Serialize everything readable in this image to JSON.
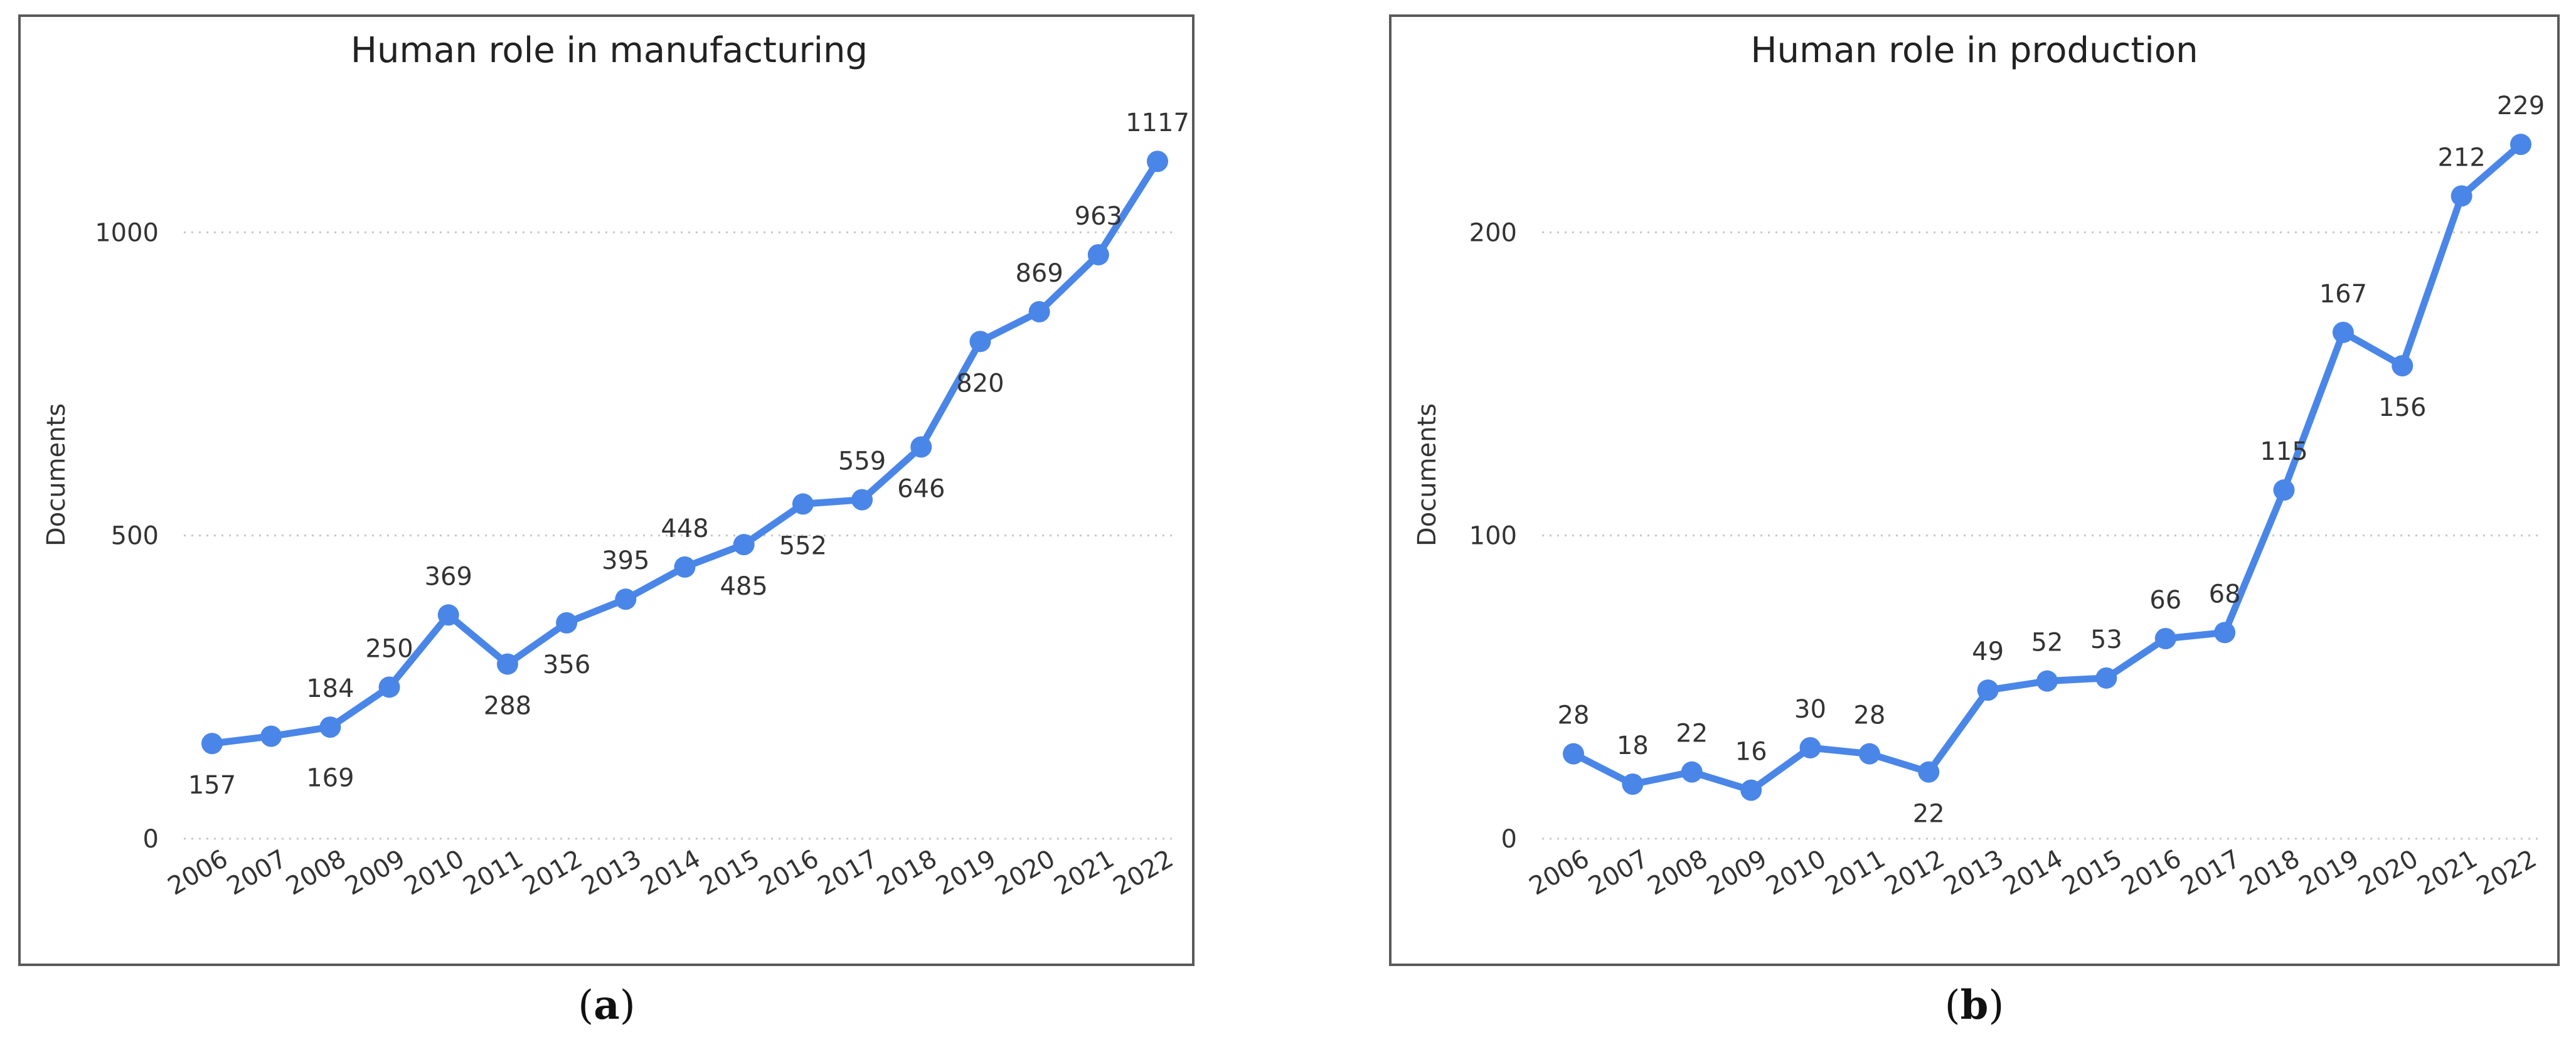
{
  "colors": {
    "line": "#4a86e8",
    "grid": "#c8c8c8",
    "text": "#333333",
    "title": "#222222"
  },
  "captions": [
    {
      "open": "(",
      "letter": "a",
      "close": ")"
    },
    {
      "open": "(",
      "letter": "b",
      "close": ")"
    }
  ],
  "chart_data": [
    {
      "type": "line",
      "title": "Human role in manufacturing",
      "xlabel": "",
      "ylabel": "Documents",
      "ylim": [
        0,
        1200
      ],
      "yticks": [
        0,
        500,
        1000
      ],
      "grid": true,
      "categories": [
        "2006",
        "2007",
        "2008",
        "2009",
        "2010",
        "2011",
        "2012",
        "2013",
        "2014",
        "2015",
        "2016",
        "2017",
        "2018",
        "2019",
        "2020",
        "2021",
        "2022"
      ],
      "values": [
        157,
        169,
        184,
        250,
        369,
        288,
        356,
        395,
        448,
        485,
        552,
        559,
        646,
        820,
        869,
        963,
        1117
      ],
      "labels": [
        {
          "text": "157",
          "pos": "below"
        },
        {
          "text": "",
          "pos": "none"
        },
        {
          "text": "184",
          "pos": "above"
        },
        {
          "text": "250",
          "pos": "above"
        },
        {
          "text": "369",
          "pos": "above"
        },
        {
          "text": "288",
          "pos": "below"
        },
        {
          "text": "356",
          "pos": "below"
        },
        {
          "text": "395",
          "pos": "above"
        },
        {
          "text": "448",
          "pos": "above"
        },
        {
          "text": "485",
          "pos": "below"
        },
        {
          "text": "552",
          "pos": "below"
        },
        {
          "text": "559",
          "pos": "above"
        },
        {
          "text": "646",
          "pos": "below"
        },
        {
          "text": "820",
          "pos": "below"
        },
        {
          "text": "869",
          "pos": "above"
        },
        {
          "text": "963",
          "pos": "above"
        },
        {
          "text": "1117",
          "pos": "above"
        }
      ],
      "extra_labels": [
        {
          "text": "169",
          "x_index": 2,
          "value": 169,
          "pos": "below"
        }
      ]
    },
    {
      "type": "line",
      "title": "Human role in production",
      "xlabel": "",
      "ylabel": "Documents",
      "ylim": [
        0,
        240
      ],
      "yticks": [
        0,
        100,
        200
      ],
      "grid": true,
      "categories": [
        "2006",
        "2007",
        "2008",
        "2009",
        "2010",
        "2011",
        "2012",
        "2013",
        "2014",
        "2015",
        "2016",
        "2017",
        "2018",
        "2019",
        "2020",
        "2021",
        "2022"
      ],
      "values": [
        28,
        18,
        22,
        16,
        30,
        28,
        22,
        49,
        52,
        53,
        66,
        68,
        115,
        167,
        156,
        212,
        229
      ],
      "labels": [
        {
          "text": "28",
          "pos": "above"
        },
        {
          "text": "18",
          "pos": "above"
        },
        {
          "text": "22",
          "pos": "above"
        },
        {
          "text": "16",
          "pos": "above"
        },
        {
          "text": "30",
          "pos": "above"
        },
        {
          "text": "28",
          "pos": "above"
        },
        {
          "text": "22",
          "pos": "below"
        },
        {
          "text": "49",
          "pos": "above"
        },
        {
          "text": "52",
          "pos": "above"
        },
        {
          "text": "53",
          "pos": "above"
        },
        {
          "text": "66",
          "pos": "above"
        },
        {
          "text": "68",
          "pos": "above"
        },
        {
          "text": "115",
          "pos": "above"
        },
        {
          "text": "167",
          "pos": "above"
        },
        {
          "text": "156",
          "pos": "below"
        },
        {
          "text": "212",
          "pos": "above"
        },
        {
          "text": "229",
          "pos": "above"
        }
      ],
      "extra_labels": []
    }
  ]
}
